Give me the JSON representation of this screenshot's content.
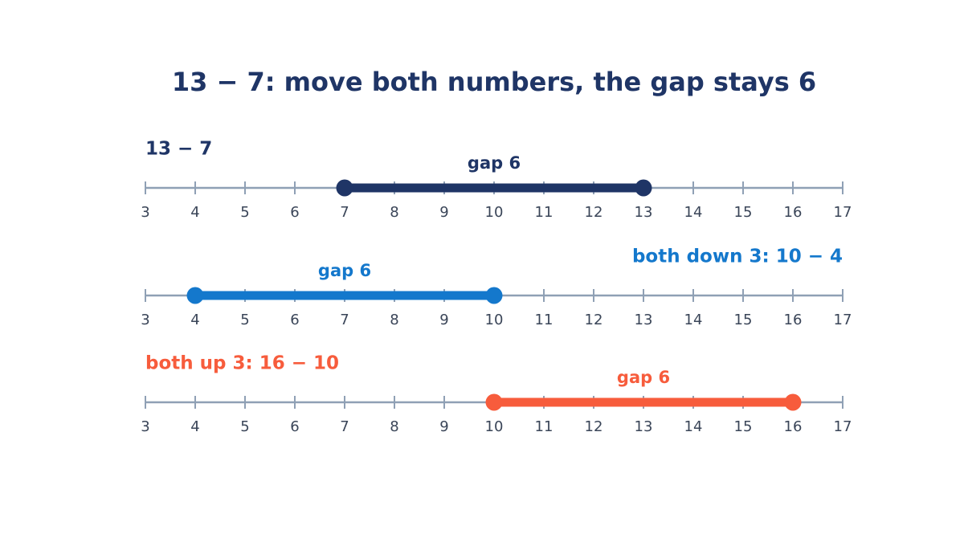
{
  "title": "13 − 7: move both numbers, the gap stays 6",
  "chart_data": [
    {
      "type": "numberline",
      "label": "13 − 7",
      "label_align": "left",
      "color": "#1f3566",
      "start": 7,
      "end": 13,
      "gap_label": "gap 6",
      "xlim": [
        3,
        17
      ],
      "xticks": [
        3,
        4,
        5,
        6,
        7,
        8,
        9,
        10,
        11,
        12,
        13,
        14,
        15,
        16,
        17
      ]
    },
    {
      "type": "numberline",
      "label": "both down 3:  10 − 4",
      "label_align": "right",
      "color": "#1478cc",
      "start": 4,
      "end": 10,
      "gap_label": "gap 6",
      "xlim": [
        3,
        17
      ],
      "xticks": [
        3,
        4,
        5,
        6,
        7,
        8,
        9,
        10,
        11,
        12,
        13,
        14,
        15,
        16,
        17
      ]
    },
    {
      "type": "numberline",
      "label": "both up 3:  16 − 10",
      "label_align": "left",
      "color": "#f75c3c",
      "start": 10,
      "end": 16,
      "gap_label": "gap 6",
      "xlim": [
        3,
        17
      ],
      "xticks": [
        3,
        4,
        5,
        6,
        7,
        8,
        9,
        10,
        11,
        12,
        13,
        14,
        15,
        16,
        17
      ]
    }
  ]
}
